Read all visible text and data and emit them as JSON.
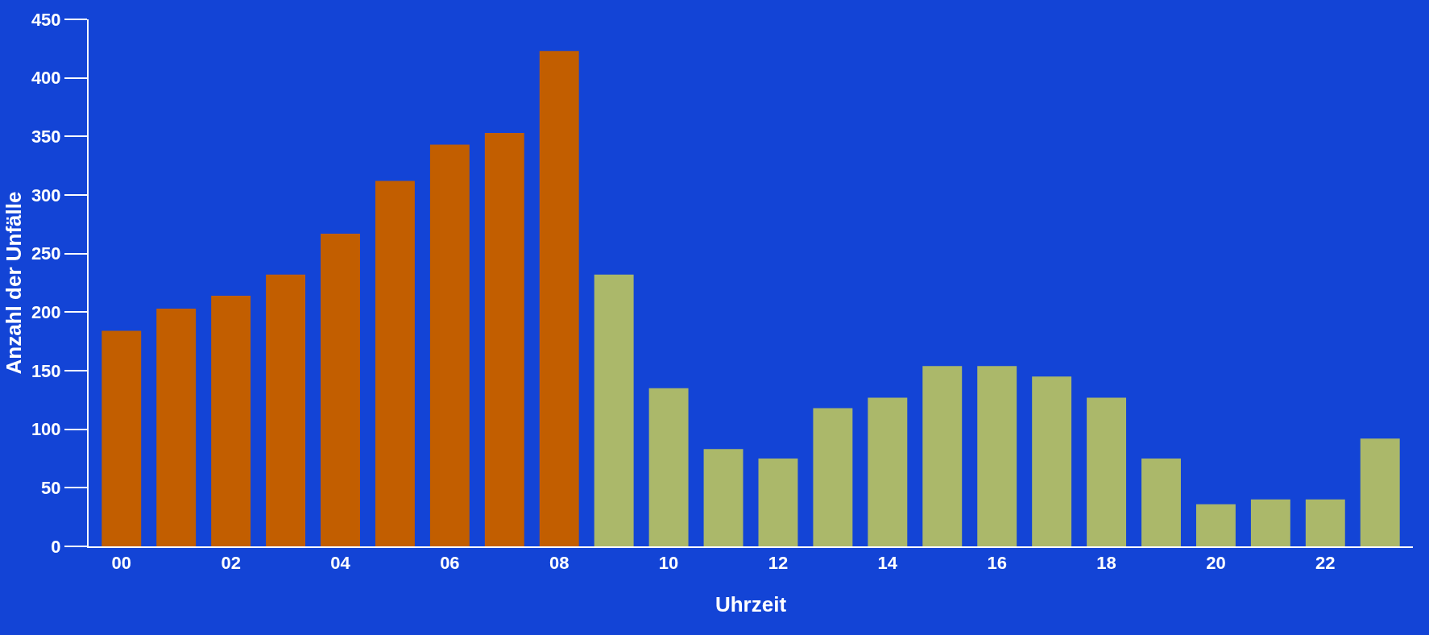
{
  "chart_data": {
    "type": "bar",
    "xlabel": "Uhrzeit",
    "ylabel": "Anzahl der Unfälle",
    "categories": [
      "00",
      null,
      "02",
      null,
      "04",
      null,
      "06",
      null,
      "08",
      null,
      "10",
      null,
      "12",
      null,
      "14",
      null,
      "16",
      null,
      "18",
      null,
      "20",
      null,
      "22",
      null
    ],
    "values": [
      184,
      203,
      214,
      232,
      267,
      312,
      343,
      353,
      423,
      232,
      135,
      83,
      75,
      118,
      127,
      154,
      154,
      145,
      127,
      75,
      36,
      40,
      40,
      92
    ],
    "colors": [
      "#c25e00",
      "#c25e00",
      "#c25e00",
      "#c25e00",
      "#c25e00",
      "#c25e00",
      "#c25e00",
      "#c25e00",
      "#c25e00",
      "#abb86a",
      "#abb86a",
      "#abb86a",
      "#abb86a",
      "#abb86a",
      "#abb86a",
      "#abb86a",
      "#abb86a",
      "#abb86a",
      "#abb86a",
      "#abb86a",
      "#abb86a",
      "#abb86a",
      "#abb86a",
      "#abb86a"
    ],
    "ylim": [
      0,
      450
    ],
    "yticks": [
      0,
      50,
      100,
      150,
      200,
      250,
      300,
      350,
      400,
      450
    ],
    "grid": false
  }
}
